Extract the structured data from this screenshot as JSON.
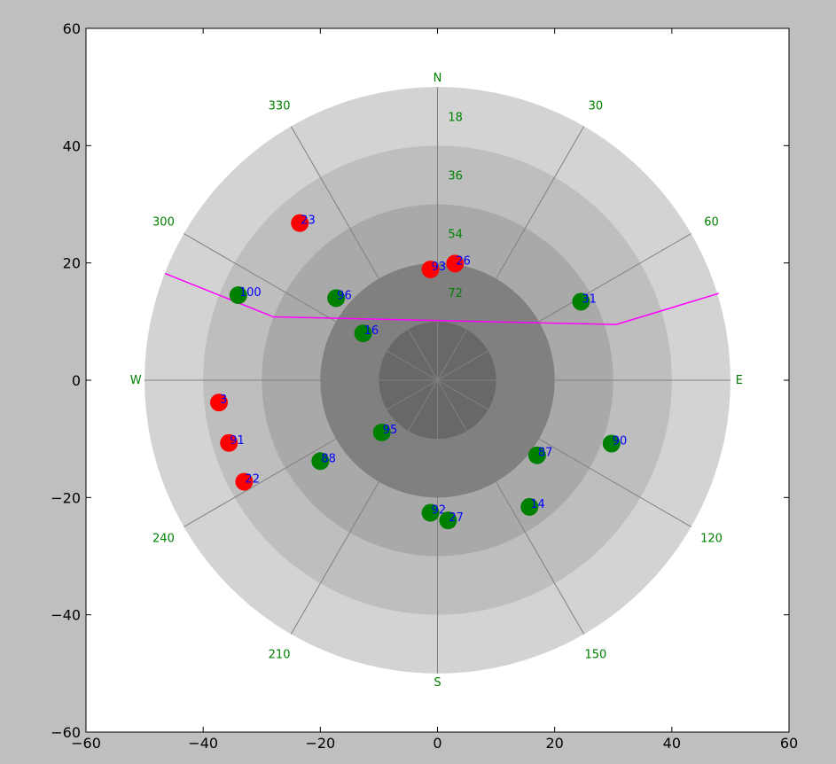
{
  "chart_data": {
    "type": "scatter",
    "title": "",
    "xlabel": "",
    "ylabel": "",
    "xlim": [
      -60,
      60
    ],
    "ylim": [
      -60,
      60
    ],
    "x_ticks": [
      -60,
      -40,
      -20,
      0,
      20,
      40,
      60
    ],
    "y_ticks": [
      -60,
      -40,
      -20,
      0,
      20,
      40,
      60
    ],
    "x_tick_labels": [
      "−60",
      "−40",
      "−20",
      "0",
      "20",
      "40",
      "60"
    ],
    "y_tick_labels": [
      "−60",
      "−40",
      "−20",
      "0",
      "20",
      "40",
      "60"
    ],
    "grid": false,
    "ring_radii": [
      50,
      40,
      30,
      20,
      10
    ],
    "elevation_labels": [
      "18",
      "36",
      "54",
      "72"
    ],
    "azimuth_labels": [
      {
        "az": 0,
        "text": "N"
      },
      {
        "az": 30,
        "text": "30"
      },
      {
        "az": 60,
        "text": "60"
      },
      {
        "az": 90,
        "text": "E"
      },
      {
        "az": 120,
        "text": "120"
      },
      {
        "az": 150,
        "text": "150"
      },
      {
        "az": 180,
        "text": "S"
      },
      {
        "az": 210,
        "text": "210"
      },
      {
        "az": 240,
        "text": "240"
      },
      {
        "az": 270,
        "text": "W"
      },
      {
        "az": 300,
        "text": "300"
      },
      {
        "az": 330,
        "text": "330"
      }
    ],
    "horizon_line": [
      [
        -46.5,
        18.2
      ],
      [
        -28,
        10.8
      ],
      [
        30.5,
        9.5
      ],
      [
        48,
        14.8
      ]
    ],
    "points": [
      {
        "label": "23",
        "x": -23.5,
        "y": 26.8,
        "status": "red"
      },
      {
        "label": "93",
        "x": -1.2,
        "y": 18.9,
        "status": "red"
      },
      {
        "label": "26",
        "x": 3.0,
        "y": 19.9,
        "status": "red"
      },
      {
        "label": "100",
        "x": -34.0,
        "y": 14.5,
        "status": "green"
      },
      {
        "label": "96",
        "x": -17.3,
        "y": 14.0,
        "status": "green"
      },
      {
        "label": "31",
        "x": 24.5,
        "y": 13.4,
        "status": "green"
      },
      {
        "label": "16",
        "x": -12.7,
        "y": 8.0,
        "status": "green"
      },
      {
        "label": "3",
        "x": -37.3,
        "y": -3.8,
        "status": "red"
      },
      {
        "label": "91",
        "x": -35.6,
        "y": -10.7,
        "status": "red"
      },
      {
        "label": "95",
        "x": -9.5,
        "y": -8.9,
        "status": "green"
      },
      {
        "label": "90",
        "x": 29.7,
        "y": -10.8,
        "status": "green"
      },
      {
        "label": "87",
        "x": 17.0,
        "y": -12.8,
        "status": "green"
      },
      {
        "label": "88",
        "x": -20.0,
        "y": -13.8,
        "status": "green"
      },
      {
        "label": "22",
        "x": -33.0,
        "y": -17.3,
        "status": "red"
      },
      {
        "label": "14",
        "x": 15.7,
        "y": -21.6,
        "status": "green"
      },
      {
        "label": "92",
        "x": -1.2,
        "y": -22.6,
        "status": "green"
      },
      {
        "label": "27",
        "x": 1.8,
        "y": -23.9,
        "status": "green"
      }
    ],
    "colors": {
      "frame_bg": "#bfbfbf",
      "plot_bg": "#ffffff",
      "ring_fills": [
        "#d3d3d3",
        "#bebebe",
        "#a9a9a9",
        "#808080",
        "#686868"
      ],
      "spoke": "#808080",
      "azimuth_text": "#008000",
      "elevation_text": "#008000",
      "horizon": "#ff00ff",
      "point_red": "#ff0000",
      "point_green": "#008000",
      "point_label": "#0000ff",
      "axis_text": "#000000"
    }
  }
}
